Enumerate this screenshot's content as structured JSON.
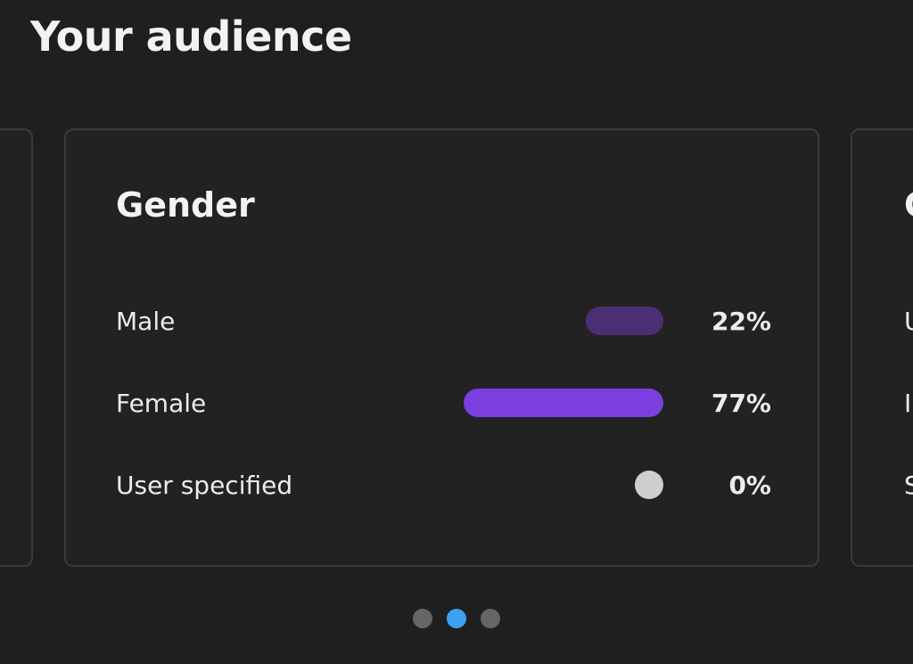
{
  "header": {
    "title": "Your audience"
  },
  "cards": {
    "main": {
      "title": "Gender",
      "rows": [
        {
          "label": "Male",
          "value": "22%",
          "fraction": 0.22,
          "color": "#4b2f73"
        },
        {
          "label": "Female",
          "value": "77%",
          "fraction": 0.77,
          "color": "#7b3fe0"
        },
        {
          "label": "User specified",
          "value": "0%",
          "fraction": 0.0,
          "color": "#cfcfcf"
        }
      ]
    },
    "next": {
      "title": "C",
      "row_labels": [
        "U",
        "I",
        "S"
      ]
    }
  },
  "pagination": {
    "count": 3,
    "active_index": 1,
    "active_color": "#3ea0f2",
    "inactive_color": "#666666"
  }
}
